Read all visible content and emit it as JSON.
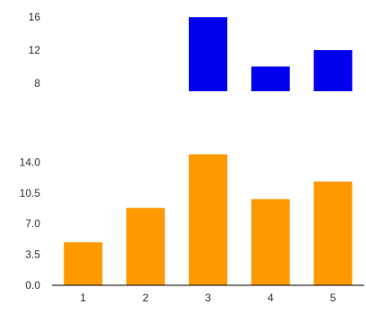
{
  "chart_data": [
    {
      "type": "bar",
      "categories": [
        "1",
        "2",
        "3",
        "4",
        "5"
      ],
      "series": [
        {
          "values": [
            null,
            null,
            16,
            10,
            12
          ],
          "color": "#0000ee"
        }
      ],
      "y_ticks": [
        "8",
        "12",
        "16"
      ],
      "ylim": [
        7,
        17
      ],
      "baseline": 7,
      "x_axis_visible": false,
      "title": "",
      "xlabel": "",
      "ylabel": ""
    },
    {
      "type": "bar",
      "categories": [
        "1",
        "2",
        "3",
        "4",
        "5"
      ],
      "series": [
        {
          "values": [
            4.9,
            8.8,
            14.9,
            9.8,
            11.8
          ],
          "color": "#ff9900"
        }
      ],
      "y_ticks": [
        "0.0",
        "3.5",
        "7.0",
        "10.5",
        "14.0"
      ],
      "ylim": [
        0,
        17.5
      ],
      "baseline": 0,
      "x_axis_visible": true,
      "title": "",
      "xlabel": "",
      "ylabel": ""
    }
  ]
}
